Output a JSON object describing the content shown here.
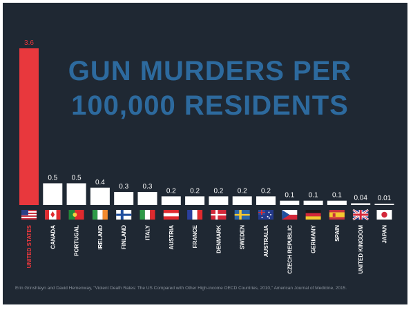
{
  "title_lines": [
    "GUN MURDERS PER",
    "100,000 RESIDENTS"
  ],
  "source": "Erin Grinshteyn and David Hemenway, \"Violent Death Rates: The US Compared with Other High-income OECD Countries, 2010,\" American Journal of Medicine, 2015.",
  "colors": {
    "background": "#1f2833",
    "title": "#2d6a9e",
    "highlight_bar": "#e8383d",
    "bar": "#ffffff"
  },
  "chart_data": {
    "type": "bar",
    "title": "GUN MURDERS PER 100,000 RESIDENTS",
    "categories": [
      "UNITED STATES",
      "CANADA",
      "PORTUGAL",
      "IRELAND",
      "FINLAND",
      "ITALY",
      "AUSTRIA",
      "FRANCE",
      "DENMARK",
      "SWEDEN",
      "AUSTRALIA",
      "CZECH REPUBLIC",
      "GERMANY",
      "SPAIN",
      "UNITED KINGDOM",
      "JAPAN"
    ],
    "values": [
      3.6,
      0.5,
      0.5,
      0.4,
      0.3,
      0.3,
      0.2,
      0.2,
      0.2,
      0.2,
      0.2,
      0.1,
      0.1,
      0.1,
      0.04,
      0.01
    ],
    "value_labels": [
      "3.6",
      "0.5",
      "0.5",
      "0.4",
      "0.3",
      "0.3",
      "0.2",
      "0.2",
      "0.2",
      "0.2",
      "0.2",
      "0.1",
      "0.1",
      "0.1",
      "0.04",
      "0.01"
    ],
    "flags": [
      "us-flag",
      "canada-flag",
      "portugal-flag",
      "ireland-flag",
      "finland-flag",
      "italy-flag",
      "austria-flag",
      "france-flag",
      "denmark-flag",
      "sweden-flag",
      "australia-flag",
      "czech-flag",
      "germany-flag",
      "spain-flag",
      "uk-flag",
      "japan-flag"
    ],
    "highlight_index": 0,
    "ylim": [
      0,
      3.6
    ]
  }
}
